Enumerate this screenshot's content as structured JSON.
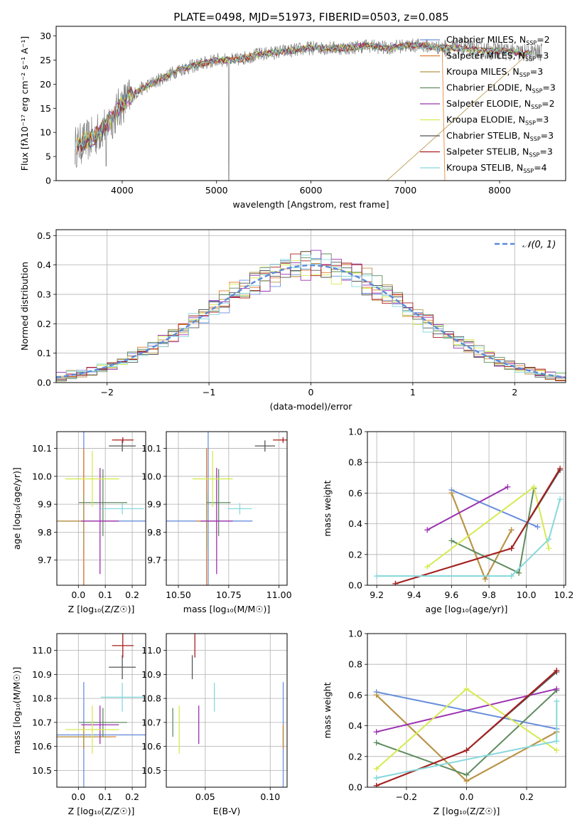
{
  "figure": {
    "title": "PLATE=0498, MJD=51973, FIBERID=0503, z=0.085"
  },
  "models": [
    {
      "name": "Chabrier MILES",
      "n": "2",
      "color": "#6a8fdc",
      "Z": [
        -0.3,
        0.3
      ],
      "age": [
        9.6,
        10.06
      ],
      "mw": [
        0.62,
        0.38
      ],
      "mass": [
        10.648,
        0.22
      ],
      "ebv": 0.11,
      "ageErr": 0.32,
      "zErr": 0.4
    },
    {
      "name": "Salpeter MILES",
      "n": "3",
      "color": "#e07b2c",
      "Z": [
        -0.3,
        0.0,
        0.3
      ],
      "age": [
        9.6,
        9.78,
        9.92
      ],
      "mw": [
        0.6,
        0.04,
        0.36
      ],
      "mass": [
        10.64,
        0.05
      ],
      "ebv": 0.11,
      "ageErr": 0.26,
      "zErr": 0.12
    },
    {
      "name": "Kroupa MILES",
      "n": "3",
      "color": "#b89448",
      "Z": [
        -0.3,
        0.0,
        0.3
      ],
      "age": [
        9.6,
        9.78,
        9.92
      ],
      "mw": [
        0.6,
        0.04,
        0.36
      ],
      "mass": [
        10.64,
        0.04
      ],
      "ebv": 0.11,
      "ageErr": 0.1,
      "zErr": 0.1
    },
    {
      "name": "Chabrier ELODIE",
      "n": "3",
      "color": "#5f8c5f",
      "Z": [
        -0.3,
        0.0,
        0.3
      ],
      "age": [
        9.6,
        9.96,
        10.04
      ],
      "mw": [
        0.29,
        0.08,
        0.63
      ],
      "mass": [
        10.7,
        0.06
      ],
      "ebv": 0.025,
      "ageErr": 0.12,
      "zErr": 0.09
    },
    {
      "name": "Salpeter ELODIE",
      "n": "2",
      "color": "#9b30b0",
      "Z": [
        -0.3,
        0.3
      ],
      "age": [
        9.47,
        9.9
      ],
      "mw": [
        0.36,
        0.64
      ],
      "mass": [
        10.69,
        0.08
      ],
      "ebv": 0.045,
      "ageErr": 0.19,
      "zErr": 0.07
    },
    {
      "name": "Kroupa ELODIE",
      "n": "3",
      "color": "#d6ea50",
      "Z": [
        -0.3,
        0.0,
        0.3
      ],
      "age": [
        9.47,
        10.04,
        10.12
      ],
      "mw": [
        0.12,
        0.64,
        0.24
      ],
      "mass": [
        10.67,
        0.1
      ],
      "ebv": 0.03,
      "ageErr": 0.1,
      "zErr": 0.1
    },
    {
      "name": "Chabrier STELIB",
      "n": "3",
      "color": "#555555",
      "Z": [
        -0.3,
        0.0,
        0.3
      ],
      "age": [
        9.3,
        9.92,
        10.18
      ],
      "mw": [
        0.01,
        0.24,
        0.75
      ],
      "mass": [
        10.93,
        0.05
      ],
      "ebv": 0.04,
      "ageErr": 0.02,
      "zErr": 0.05
    },
    {
      "name": "Salpeter STELIB",
      "n": "3",
      "color": "#aa1e1e",
      "Z": [
        -0.3,
        0.0,
        0.3
      ],
      "age": [
        9.3,
        9.92,
        10.18
      ],
      "mw": [
        0.01,
        0.24,
        0.76
      ],
      "mass": [
        11.02,
        0.05
      ],
      "ebv": 0.042,
      "ageErr": 0.01,
      "zErr": 0.04
    },
    {
      "name": "Kroupa STELIB",
      "n": "4",
      "color": "#86d8dc",
      "Z": [
        -0.3,
        -0.3,
        0.3,
        0.3
      ],
      "age": [
        9.2,
        9.92,
        10.12,
        10.18
      ],
      "mw": [
        0.06,
        0.06,
        0.3,
        0.56
      ],
      "mass": [
        10.805,
        0.06
      ],
      "ebv": 0.057,
      "ageErr": 0.02,
      "zErr": 0.08
    }
  ],
  "chart_data": [
    {
      "type": "line",
      "title": "PLATE=0498, MJD=51973, FIBERID=0503, z=0.085",
      "xlabel": "wavelength [Angstrom, rest frame]",
      "ylabel": "Flux [fλ10⁻¹⁷ erg cm⁻² s⁻¹ A⁻¹]",
      "xlim": [
        3300,
        8700
      ],
      "ylim": [
        0,
        32
      ],
      "xticks": [
        "4000",
        "5000",
        "6000",
        "7000",
        "8000"
      ],
      "yticks": [
        "0",
        "5",
        "10",
        "15",
        "20",
        "25",
        "30"
      ],
      "legend": "top-right",
      "continuum": {
        "x": [
          3500,
          3700,
          3900,
          4000,
          4200,
          4400,
          4600,
          4800,
          5000,
          5200,
          5400,
          5600,
          5800,
          6000,
          6200,
          6400,
          6600,
          6800,
          7000,
          7200,
          7400,
          7600,
          7800,
          8000,
          8200,
          8400
        ],
        "y": [
          7,
          9,
          13,
          16,
          19,
          21,
          23,
          24,
          25,
          25,
          26,
          26.5,
          27,
          27.5,
          27.5,
          27.5,
          28,
          27.5,
          28,
          28,
          27.5,
          27.5,
          27,
          27,
          26.5,
          26.5
        ]
      }
    },
    {
      "type": "bar",
      "xlabel": "(data-model)/error",
      "ylabel": "Normed distribution",
      "xlim": [
        -2.5,
        2.5
      ],
      "ylim": [
        0,
        0.52
      ],
      "xticks": [
        "−2",
        "−1",
        "0",
        "1",
        "2"
      ],
      "yticks": [
        "0.0",
        "0.1",
        "0.2",
        "0.3",
        "0.4",
        "0.5"
      ],
      "legend_label": "𝒩(0, 1)",
      "legend": "top-right",
      "grid": true
    },
    {
      "type": "scatter",
      "xlabel": "Z [log₁₀(Z/Z☉)]",
      "ylabel": "age  [log₁₀(age/yr)]",
      "xlim": [
        -0.08,
        0.25
      ],
      "ylim": [
        9.61,
        10.16
      ],
      "xticks": [
        "0.0",
        "0.1",
        "0.2"
      ],
      "yticks": [
        "9.7",
        "9.8",
        "9.9",
        "10.0",
        "10.1"
      ],
      "grid": true
    },
    {
      "type": "scatter",
      "xlabel": "mass [log₁₀(M/M☉)]",
      "xlim": [
        10.44,
        11.04
      ],
      "ylim": [
        9.61,
        10.16
      ],
      "xticks": [
        "10.50",
        "10.75",
        "11.00"
      ],
      "yticks": [
        "9.7",
        "9.8",
        "9.9",
        "10.0",
        "10.1"
      ],
      "grid": true
    },
    {
      "type": "line",
      "xlabel": "age  [log₁₀(age/yr)]",
      "ylabel": "mass weight",
      "xlim": [
        9.15,
        10.21
      ],
      "ylim": [
        0,
        1
      ],
      "xticks": [
        "9.2",
        "9.4",
        "9.6",
        "9.8",
        "10.0",
        "10.2"
      ],
      "yticks": [
        "0.0",
        "0.2",
        "0.4",
        "0.6",
        "0.8",
        "1.0"
      ],
      "grid": true
    },
    {
      "type": "scatter",
      "xlabel": "Z [log₁₀(Z/Z☉)]",
      "ylabel": "mass [log₁₀(M/M☉)]",
      "xlim": [
        -0.08,
        0.25
      ],
      "ylim": [
        10.43,
        11.07
      ],
      "xticks": [
        "0.0",
        "0.1",
        "0.2"
      ],
      "yticks": [
        "10.5",
        "10.6",
        "10.7",
        "10.8",
        "10.9",
        "11.0"
      ],
      "grid": true
    },
    {
      "type": "scatter",
      "xlabel": "E(B-V)",
      "xlim": [
        0.02,
        0.113
      ],
      "ylim": [
        10.43,
        11.07
      ],
      "xticks": [
        "0.05",
        "0.10"
      ],
      "yticks": [
        "10.5",
        "10.6",
        "10.7",
        "10.8",
        "10.9",
        "11.0"
      ],
      "grid": true
    },
    {
      "type": "line",
      "xlabel": "Z [log₁₀(Z/Z☉)]",
      "ylabel": "mass weight",
      "xlim": [
        -0.33,
        0.33
      ],
      "ylim": [
        0,
        1
      ],
      "xticks": [
        "−0.2",
        "0.0",
        "0.2"
      ],
      "yticks": [
        "0.0",
        "0.2",
        "0.4",
        "0.6",
        "0.8",
        "1.0"
      ],
      "grid": true
    }
  ]
}
